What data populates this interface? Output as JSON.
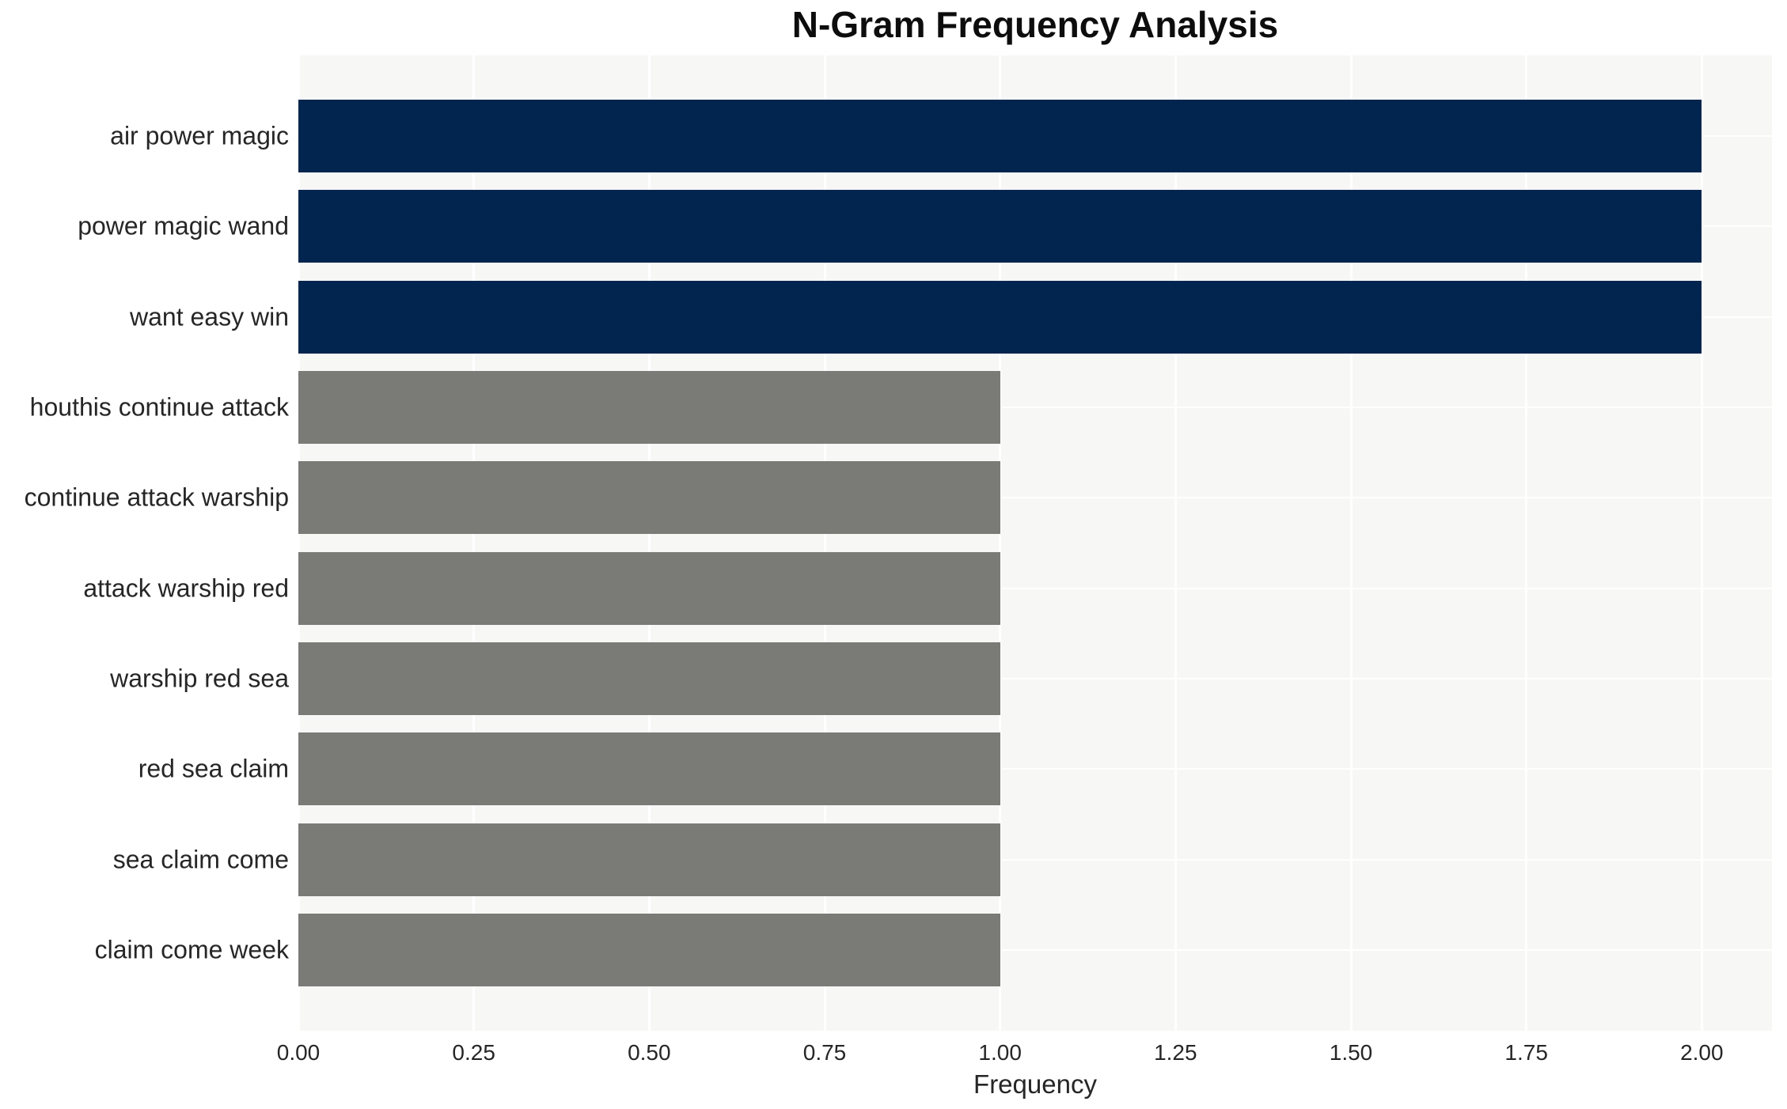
{
  "chart_data": {
    "type": "bar",
    "orientation": "horizontal",
    "title": "N-Gram Frequency Analysis",
    "xlabel": "Frequency",
    "ylabel": "",
    "categories": [
      "air power magic",
      "power magic wand",
      "want easy win",
      "houthis continue attack",
      "continue attack warship",
      "attack warship red",
      "warship red sea",
      "red sea claim",
      "sea claim come",
      "claim come week"
    ],
    "values": [
      2,
      2,
      2,
      1,
      1,
      1,
      1,
      1,
      1,
      1
    ],
    "bar_colors": [
      "#01254e",
      "#01254e",
      "#01254e",
      "#7a7a77",
      "#7a7a77",
      "#7a7a77",
      "#7a7a77",
      "#7a7a77",
      "#7a7a77",
      "#7a7a77"
    ],
    "xlim": [
      0,
      2.1
    ],
    "xticks": [
      0.0,
      0.25,
      0.5,
      0.75,
      1.0,
      1.25,
      1.5,
      1.75,
      2.0
    ],
    "xtick_labels": [
      "0.00",
      "0.25",
      "0.50",
      "0.75",
      "1.00",
      "1.25",
      "1.50",
      "1.75",
      "2.00"
    ],
    "grid": true,
    "legend": false,
    "colors": {
      "bar_high": "#01254e",
      "bar_low": "#7a7a77",
      "plot_background": "#f7f7f6",
      "gridline": "#ffffff",
      "text": "#262626",
      "title_text": "#0d0d0d",
      "figure_background": "#ffffff"
    }
  }
}
